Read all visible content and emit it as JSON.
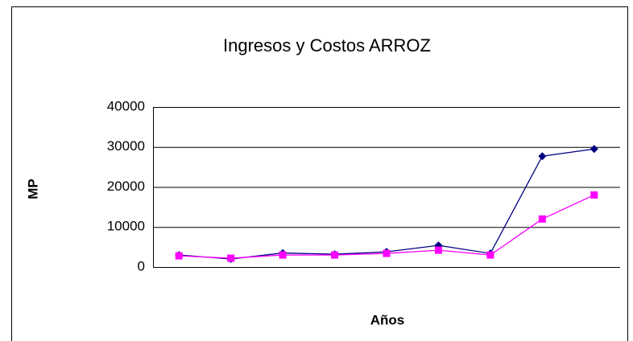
{
  "chart_data": {
    "type": "line",
    "title": "Ingresos y Costos ARROZ",
    "x_label": "Años",
    "y_label": "MP",
    "categories": [
      null,
      null,
      null,
      null,
      null,
      null,
      null,
      null,
      null
    ],
    "series": [
      {
        "color": "#000080",
        "marker": "diamond",
        "values": [
          3000,
          2000,
          3500,
          3200,
          3800,
          5400,
          3400,
          27700,
          29500
        ]
      },
      {
        "color": "#ff00ff",
        "marker": "square",
        "values": [
          2800,
          2200,
          3000,
          3000,
          3400,
          4200,
          3000,
          12000,
          18000
        ]
      }
    ],
    "ylim": [
      0,
      40000
    ],
    "yticks": [
      0,
      10000,
      20000,
      30000,
      40000
    ],
    "grid": true
  }
}
